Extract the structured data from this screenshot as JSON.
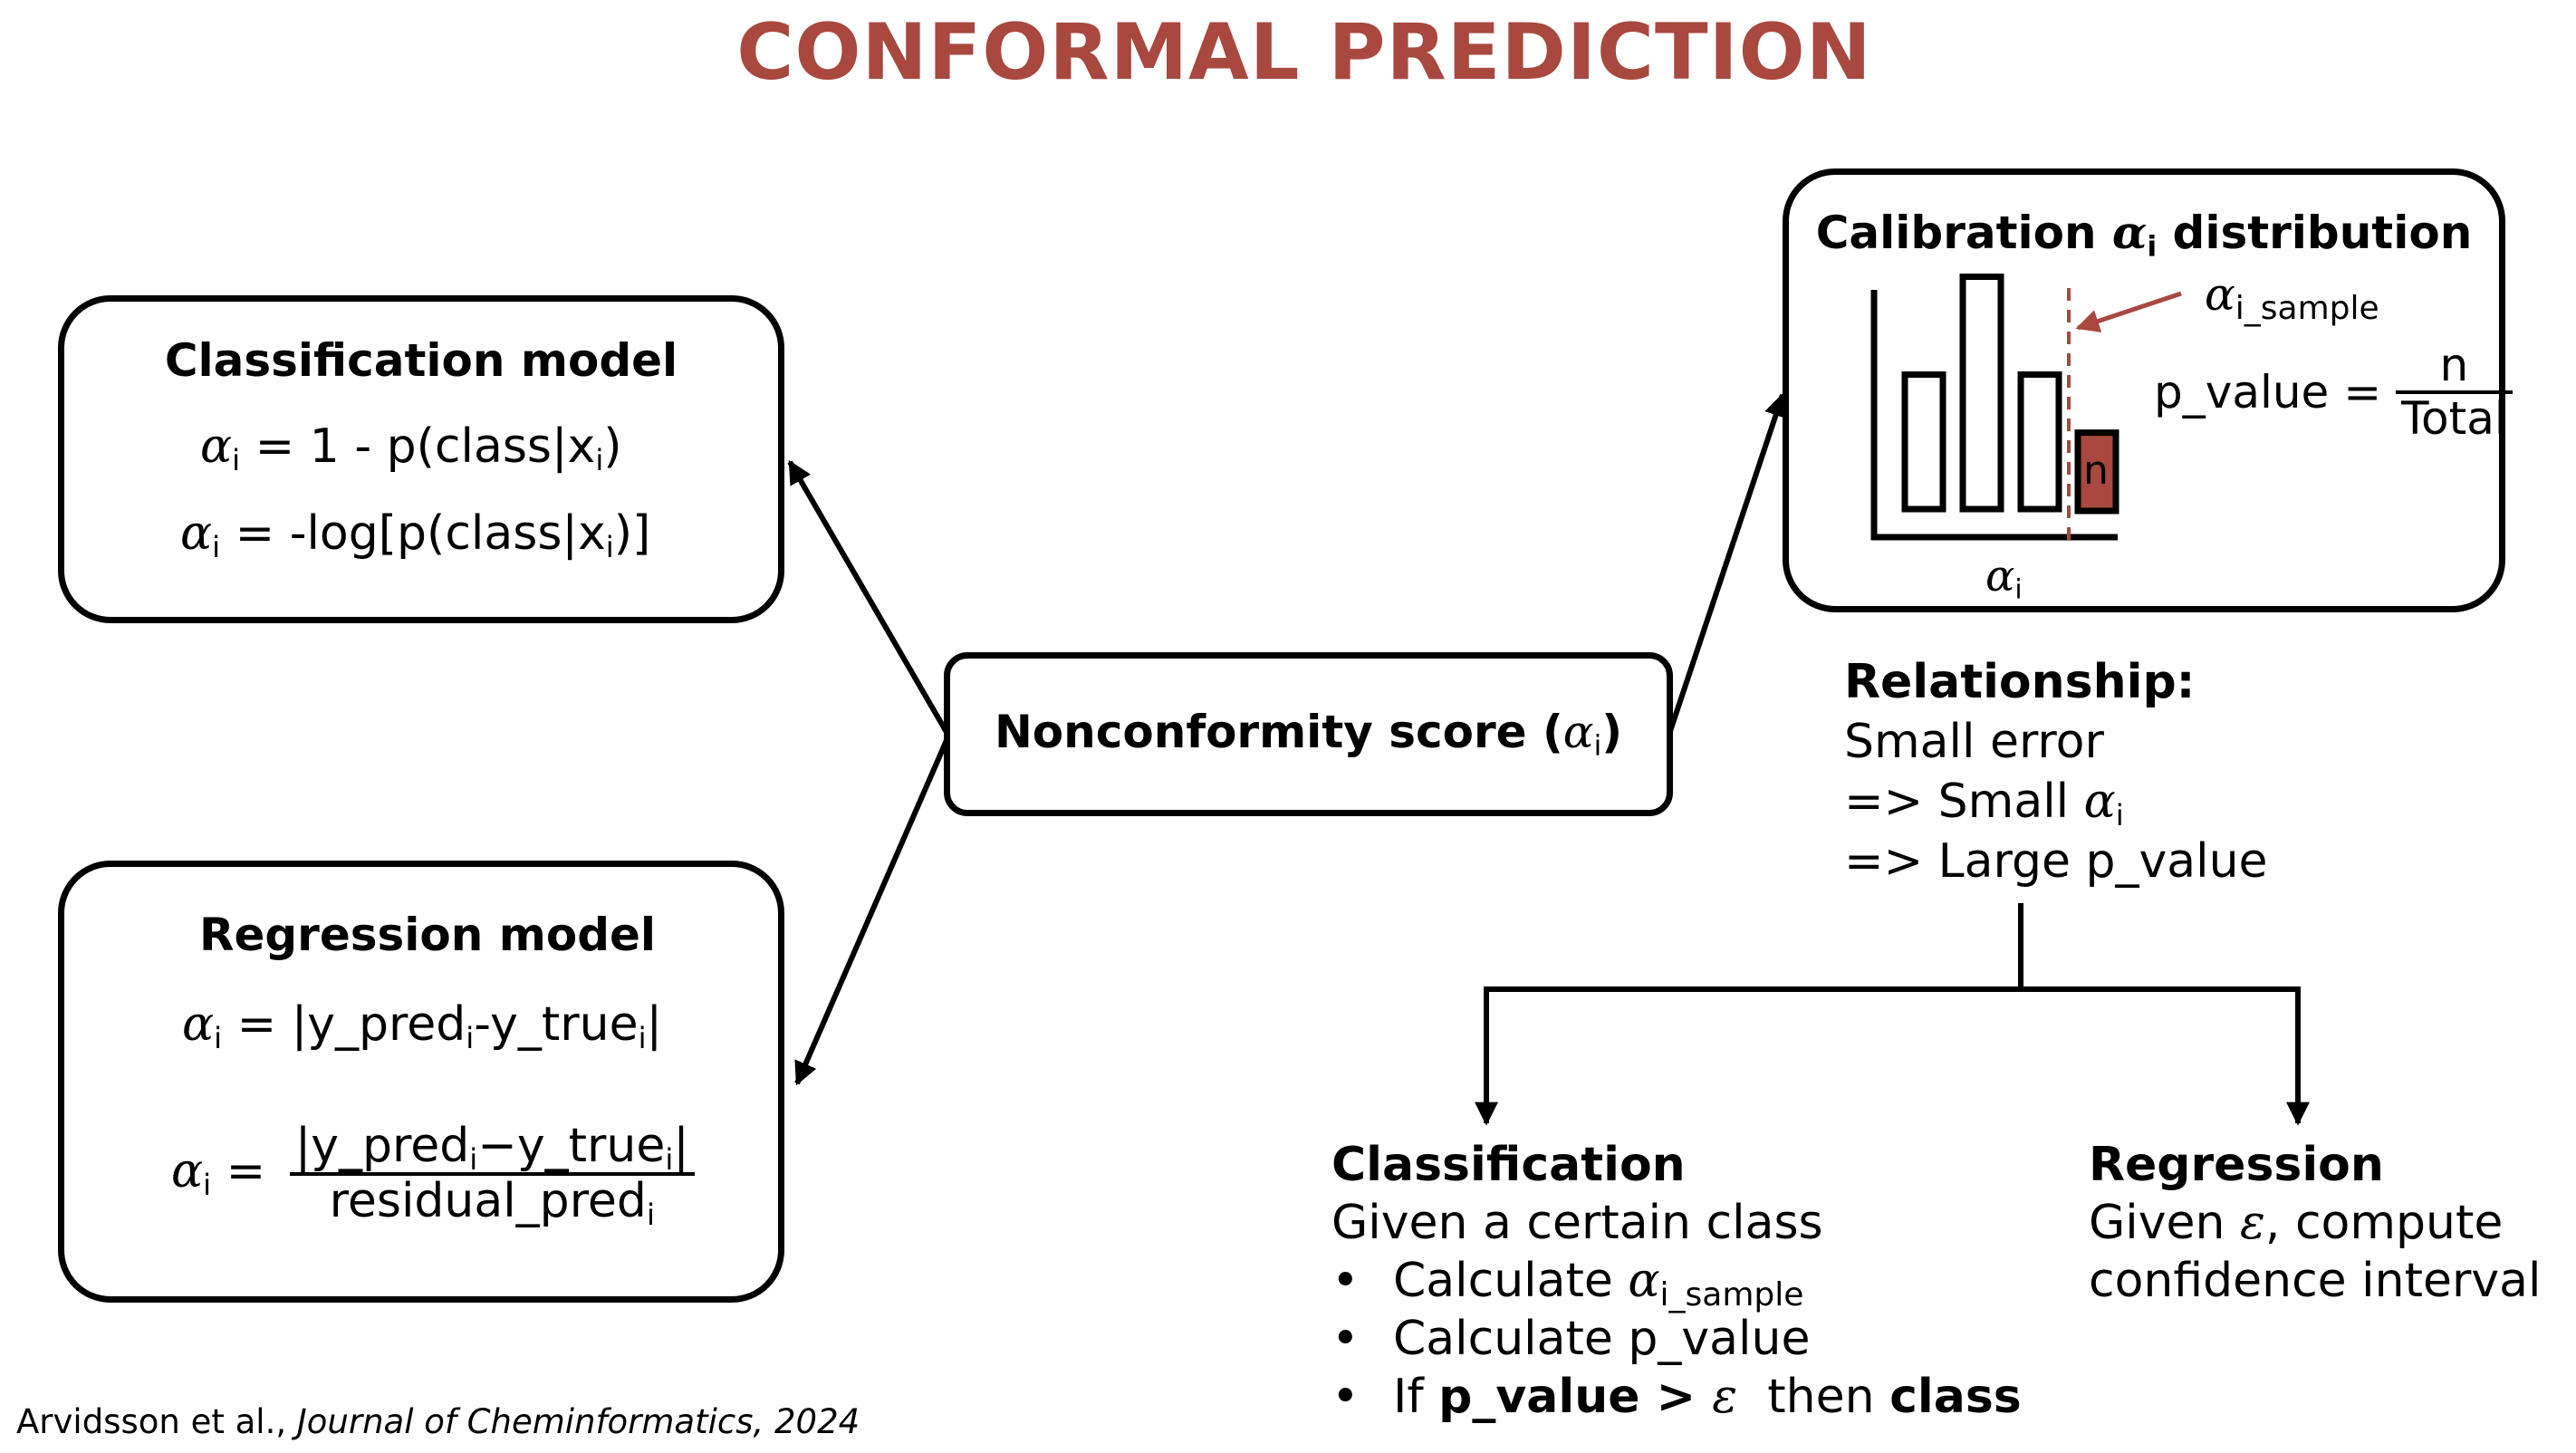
{
  "title": "CONFORMAL PREDICTION",
  "colors": {
    "title": "#a8483f",
    "accent_bar": "#a8483f",
    "dashed_line": "#a8483f",
    "arrow_sample": "#a8483f"
  },
  "center": {
    "label": "Nonconformity score (",
    "alpha": "α",
    "sub": "i",
    "close": ")"
  },
  "classification_model": {
    "title": "Classification model",
    "eq1": {
      "alpha": "α",
      "sub": "i",
      "rhs": " = 1 - p(class|x",
      "rhs_sub": "i",
      "rhs_end": ")"
    },
    "eq2": {
      "alpha": "α",
      "sub": "i",
      "rhs": " = -log[p(class|x",
      "rhs_sub": "i",
      "rhs_end": ")]"
    }
  },
  "regression_model": {
    "title": "Regression model",
    "eq1": {
      "alpha": "α",
      "sub": "i",
      "rhs1": " = |y_pred",
      "sub1": "i",
      "rhs2": "-y_true",
      "sub2": "i",
      "rhs3": "|"
    },
    "eq2": {
      "alpha": "α",
      "sub": "i",
      "eq": " =",
      "num1": "|y_pred",
      "num_sub1": "i",
      "num2": "−y_true",
      "num_sub2": "i",
      "num3": "|",
      "den": "residual_pred",
      "den_sub": "i"
    }
  },
  "calibration": {
    "title_pre": "Calibration ",
    "alpha": "α",
    "sub": "i",
    "title_post": " distribution",
    "sample_alpha": "α",
    "sample_sub": "i_sample",
    "pvalue_label": "p_value =",
    "pvalue_num": "n",
    "pvalue_den": "Total",
    "bar_n_label": "n",
    "axis_alpha": "α",
    "axis_sub": "i",
    "histogram_values": [
      0.55,
      0.95,
      0.55,
      0.32
    ]
  },
  "relationship": {
    "title": "Relationship:",
    "line1": "Small error",
    "line2_pre": "=> Small ",
    "line2_alpha": "α",
    "line2_sub": "i",
    "line3": "=> Large p_value"
  },
  "classification_branch": {
    "title": "Classification",
    "line1": "Given a certain class",
    "bullet": "•",
    "b1_pre": "Calculate ",
    "b1_alpha": "α",
    "b1_sub": "i_sample",
    "b2": "Calculate p_value",
    "b3_if": "If ",
    "b3_bold1": "p_value > ",
    "b3_eps": "ε",
    "b3_then": "  then ",
    "b3_bold2": "class"
  },
  "regression_branch": {
    "title": "Regression",
    "line1_pre": "Given ",
    "line1_eps": "ε",
    "line1_post": ", compute",
    "line2": "confidence interval"
  },
  "citation": {
    "authors": "Arvidsson et al., ",
    "journal": "Journal of Cheminformatics, 2024"
  }
}
